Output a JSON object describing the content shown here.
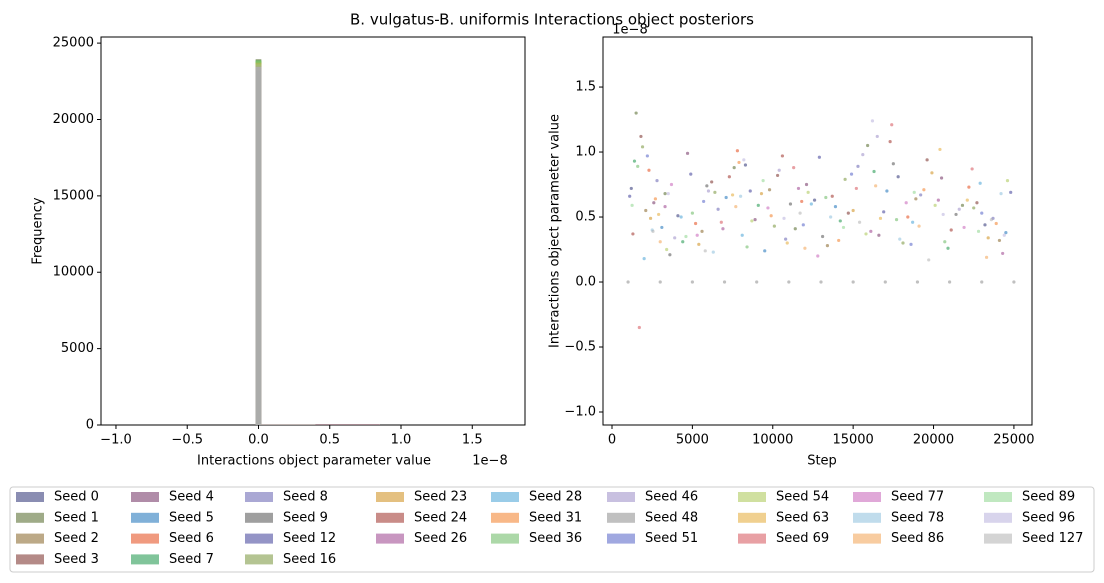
{
  "title": "B. vulgatus-B. uniformis Interactions object posteriors",
  "alpha": 0.5,
  "legend": {
    "loc": "lower center",
    "columns": 9
  },
  "chart_data": [
    {
      "type": "histogram",
      "xlabel": "Interactions object parameter value",
      "ylabel": "Frequency",
      "x_offset_label": "1e−8",
      "xlim": [
        -1.105e-08,
        1.87e-08
      ],
      "xticks": [
        {
          "value": -1e-08,
          "label": "−1.0"
        },
        {
          "value": -5e-09,
          "label": "−0.5"
        },
        {
          "value": 0,
          "label": "0.0"
        },
        {
          "value": 5e-09,
          "label": "0.5"
        },
        {
          "value": 1e-08,
          "label": "1.0"
        },
        {
          "value": 1.5e-08,
          "label": "1.5"
        }
      ],
      "ylim": [
        0,
        25400
      ],
      "yticks": [
        0,
        5000,
        10000,
        15000,
        20000,
        25000
      ],
      "bins": [
        -2e-10,
        2e-10,
        4e-09,
        8.5e-09
      ],
      "series": [
        {
          "name": "Seed 0",
          "color": "#151b65",
          "values": [
            23000,
            6,
            38
          ]
        },
        {
          "name": "Seed 1",
          "color": "#3f5711",
          "values": [
            23950,
            4,
            41
          ]
        },
        {
          "name": "Seed 2",
          "color": "#79530f",
          "values": [
            23700,
            5,
            35
          ]
        },
        {
          "name": "Seed 3",
          "color": "#69150f",
          "values": [
            23500,
            7,
            44
          ]
        },
        {
          "name": "Seed 4",
          "color": "#611951",
          "values": [
            23400,
            3,
            39
          ]
        },
        {
          "name": "Seed 5",
          "color": "#0161b1",
          "values": [
            23600,
            6,
            30
          ]
        },
        {
          "name": "Seed 6",
          "color": "#e13500",
          "values": [
            23550,
            5,
            42
          ]
        },
        {
          "name": "Seed 7",
          "color": "#018935",
          "values": [
            23800,
            4,
            33
          ]
        },
        {
          "name": "Seed 8",
          "color": "#5551a9",
          "values": [
            23300,
            6,
            37
          ]
        },
        {
          "name": "Seed 9",
          "color": "#3f3f3f",
          "values": [
            23100,
            5,
            29
          ]
        },
        {
          "name": "Seed 12",
          "color": "#29298d",
          "values": [
            23450,
            4,
            46
          ]
        },
        {
          "name": "Seed 16",
          "color": "#698925",
          "values": [
            23850,
            6,
            40
          ]
        },
        {
          "name": "Seed 23",
          "color": "#c98101",
          "values": [
            23650,
            3,
            31
          ]
        },
        {
          "name": "Seed 24",
          "color": "#931911",
          "values": [
            23500,
            5,
            43
          ]
        },
        {
          "name": "Seed 26",
          "color": "#912d81",
          "values": [
            23350,
            4,
            34
          ]
        },
        {
          "name": "Seed 28",
          "color": "#3599d1",
          "values": [
            23600,
            6,
            28
          ]
        },
        {
          "name": "Seed 31",
          "color": "#f17111",
          "values": [
            23750,
            5,
            36
          ]
        },
        {
          "name": "Seed 36",
          "color": "#59b151",
          "values": [
            23900,
            4,
            32
          ]
        },
        {
          "name": "Seed 46",
          "color": "#9181c1",
          "values": [
            23250,
            7,
            45
          ]
        },
        {
          "name": "Seed 48",
          "color": "#818181",
          "values": [
            23150,
            2,
            5
          ]
        },
        {
          "name": "Seed 51",
          "color": "#4151c1",
          "values": [
            23400,
            5,
            38
          ]
        },
        {
          "name": "Seed 54",
          "color": "#a1c141",
          "values": [
            23800,
            4,
            30
          ]
        },
        {
          "name": "Seed 63",
          "color": "#e1a121",
          "values": [
            23700,
            6,
            35
          ]
        },
        {
          "name": "Seed 69",
          "color": "#d14149",
          "values": [
            23500,
            5,
            47
          ]
        },
        {
          "name": "Seed 77",
          "color": "#c151b1",
          "values": [
            23300,
            3,
            33
          ]
        },
        {
          "name": "Seed 78",
          "color": "#81b9d9",
          "values": [
            23600,
            4,
            29
          ]
        },
        {
          "name": "Seed 86",
          "color": "#f19941",
          "values": [
            23650,
            5,
            27
          ]
        },
        {
          "name": "Seed 89",
          "color": "#81d181",
          "values": [
            23850,
            4,
            31
          ]
        },
        {
          "name": "Seed 96",
          "color": "#b1a9d9",
          "values": [
            23450,
            6,
            39
          ]
        },
        {
          "name": "Seed 127",
          "color": "#a9a9a9",
          "values": [
            23200,
            3,
            26
          ]
        }
      ]
    },
    {
      "type": "scatter",
      "xlabel": "Step",
      "ylabel": "Interactions object parameter value",
      "y_offset_label": "1e−8",
      "xlim": [
        -560,
        26125
      ],
      "xticks": [
        0,
        5000,
        10000,
        15000,
        20000,
        25000
      ],
      "ylim": [
        -1.1e-08,
        1.885e-08
      ],
      "yticks": [
        {
          "value": -1e-08,
          "label": "−1.0"
        },
        {
          "value": -5e-09,
          "label": "−0.5"
        },
        {
          "value": 0,
          "label": "0.0"
        },
        {
          "value": 5e-09,
          "label": "0.5"
        },
        {
          "value": 1e-08,
          "label": "1.0"
        },
        {
          "value": 1.5e-08,
          "label": "1.5"
        }
      ],
      "series": [
        {
          "x": [
            1200,
            4100,
            8300,
            12600,
            17800,
            23200
          ],
          "values": [
            7.2e-09,
            5.1e-09,
            9e-09,
            6.3e-09,
            8.1e-09,
            4.4e-09
          ]
        },
        {
          "x": [
            1500,
            3300,
            7600,
            11400,
            15900,
            21800
          ],
          "values": [
            1.3e-08,
            6.8e-09,
            8.8e-09,
            4.1e-09,
            1.05e-08,
            5.9e-09
          ]
        },
        {
          "x": [
            2100,
            5600,
            9800,
            13400,
            18900,
            24100
          ],
          "values": [
            5.5e-09,
            3.9e-09,
            7.1e-09,
            2.8e-09,
            6.4e-09,
            3.2e-09
          ]
        },
        {
          "x": [
            1800,
            6200,
            10300,
            14700,
            19600,
            22700
          ],
          "values": [
            1.12e-08,
            7.7e-09,
            8.2e-09,
            5.3e-09,
            9.4e-09,
            6.1e-09
          ]
        },
        {
          "x": [
            2600,
            4700,
            8900,
            12100,
            16600,
            20500
          ],
          "values": [
            6.1e-09,
            9.9e-09,
            4.8e-09,
            7.5e-09,
            3.6e-09,
            8e-09
          ]
        },
        {
          "x": [
            3100,
            7100,
            9500,
            13900,
            17100,
            24500
          ],
          "values": [
            4.2e-09,
            6.5e-09,
            2.4e-09,
            5.8e-09,
            7e-09,
            3.8e-09
          ]
        },
        {
          "x": [
            2300,
            5200,
            7800,
            11800,
            18400,
            22200
          ],
          "values": [
            8.6e-09,
            4.5e-09,
            1.01e-08,
            6.2e-09,
            5e-09,
            7.3e-09
          ]
        },
        {
          "x": [
            1400,
            4400,
            9100,
            14200,
            16300,
            20900
          ],
          "values": [
            9.3e-09,
            3.1e-09,
            5.9e-09,
            4.7e-09,
            8.5e-09,
            2.6e-09
          ]
        },
        {
          "x": [
            2800,
            6600,
            10800,
            15300,
            19200,
            23700
          ],
          "values": [
            7.8e-09,
            5.6e-09,
            3.3e-09,
            8.9e-09,
            6.7e-09,
            4.9e-09
          ]
        },
        {
          "x": [
            3600,
            5900,
            11100,
            13100,
            17500,
            21400
          ],
          "values": [
            2.1e-09,
            7.4e-09,
            6e-09,
            3.5e-09,
            9.1e-09,
            5.2e-09
          ]
        },
        {
          "x": [
            1100,
            4900,
            8600,
            12900,
            16900,
            24800
          ],
          "values": [
            6.6e-09,
            8.3e-09,
            7e-09,
            9.6e-09,
            5.4e-09,
            6.9e-09
          ]
        },
        {
          "x": [
            1900,
            6400,
            10100,
            14500,
            18100,
            22500
          ],
          "values": [
            1.04e-08,
            6.9e-09,
            4.3e-09,
            7.9e-09,
            3e-09,
            5.7e-09
          ]
        },
        {
          "x": [
            2400,
            5400,
            9300,
            15000,
            19900,
            23400
          ],
          "values": [
            4.9e-09,
            2.9e-09,
            6.8e-09,
            5.5e-09,
            8.4e-09,
            3.4e-09
          ]
        },
        {
          "x": [
            1300,
            7300,
            10600,
            13700,
            17300,
            21100
          ],
          "values": [
            3.7e-09,
            8.1e-09,
            9.7e-09,
            6.6e-09,
            1.08e-08,
            4e-09
          ]
        },
        {
          "x": [
            3300,
            6900,
            11600,
            16100,
            20300,
            24300
          ],
          "values": [
            5.8e-09,
            4.1e-09,
            7.2e-09,
            3.9e-09,
            6.3e-09,
            2.2e-09
          ]
        },
        {
          "x": [
            2000,
            4300,
            8100,
            12400,
            18700,
            22900
          ],
          "values": [
            1.8e-09,
            5e-09,
            3.6e-09,
            6e-09,
            4.6e-09,
            7.6e-09
          ]
        },
        {
          "x": [
            2700,
            7900,
            9900,
            14100,
            19400,
            23900
          ],
          "values": [
            6.4e-09,
            9.2e-09,
            5.1e-09,
            3.2e-09,
            7.1e-09,
            4.5e-09
          ]
        },
        {
          "x": [
            1600,
            5000,
            8400,
            13300,
            17700,
            20700
          ],
          "values": [
            8.9e-09,
            5.3e-09,
            2.7e-09,
            6.5e-09,
            4.8e-09,
            3.1e-09
          ]
        },
        {
          "x": [
            3900,
            6000,
            10400,
            15600,
            16500,
            21600
          ],
          "values": [
            3.4e-09,
            7e-09,
            8.6e-09,
            9.8e-09,
            1.12e-08,
            5.6e-09
          ]
        },
        {
          "x": [
            1000,
            3000,
            5000,
            7000,
            9000,
            11000,
            13000,
            15000,
            17000,
            19000,
            21000,
            23000,
            25000
          ],
          "values": [
            0,
            0,
            0,
            0,
            0,
            0,
            0,
            0,
            0,
            0,
            0,
            0,
            0
          ]
        },
        {
          "x": [
            2200,
            5700,
            11900,
            14900,
            18600,
            23000
          ],
          "values": [
            9.7e-09,
            6.2e-09,
            4.4e-09,
            8.3e-09,
            2.9e-09,
            5.3e-09
          ]
        },
        {
          "x": [
            3400,
            8700,
            12200,
            15800,
            20100,
            24600
          ],
          "values": [
            2.5e-09,
            4.7e-09,
            6.9e-09,
            3.7e-09,
            5.9e-09,
            7.8e-09
          ]
        },
        {
          "x": [
            2900,
            7500,
            10900,
            16700,
            20400,
            22100
          ],
          "values": [
            5.2e-09,
            6.7e-09,
            3e-09,
            4.9e-09,
            1.02e-08,
            6.3e-09
          ]
        },
        {
          "x": [
            1700,
            6800,
            11300,
            15200,
            17400,
            22400
          ],
          "values": [
            -3.5e-09,
            4.6e-09,
            8.8e-09,
            7.2e-09,
            1.21e-08,
            8.7e-09
          ]
        },
        {
          "x": [
            3700,
            5300,
            9700,
            12800,
            18300,
            21900
          ],
          "values": [
            7.5e-09,
            3.6e-09,
            5.7e-09,
            2e-09,
            6.1e-09,
            4.2e-09
          ]
        },
        {
          "x": [
            2500,
            6300,
            8000,
            13600,
            17900,
            24200
          ],
          "values": [
            4e-09,
            2.3e-09,
            6.6e-09,
            5e-09,
            3.3e-09,
            6.8e-09
          ]
        },
        {
          "x": [
            3000,
            7700,
            12000,
            16400,
            19100,
            23300
          ],
          "values": [
            3.1e-09,
            5.8e-09,
            2.6e-09,
            7.4e-09,
            4.3e-09,
            1.9e-09
          ]
        },
        {
          "x": [
            1250,
            4600,
            9400,
            14400,
            18800,
            22800
          ],
          "values": [
            5.9e-09,
            3.5e-09,
            7.8e-09,
            4.2e-09,
            6.9e-09,
            3.9e-09
          ]
        },
        {
          "x": [
            3500,
            8200,
            10700,
            16200,
            20600,
            24400
          ],
          "values": [
            6.8e-09,
            9.4e-09,
            4.9e-09,
            1.24e-08,
            5.2e-09,
            3.6e-09
          ]
        },
        {
          "x": [
            2550,
            5800,
            11700,
            15400,
            19700,
            23600
          ],
          "values": [
            3.9e-09,
            2.4e-09,
            5.3e-09,
            4.6e-09,
            1.7e-09,
            4.8e-09
          ]
        }
      ]
    }
  ]
}
